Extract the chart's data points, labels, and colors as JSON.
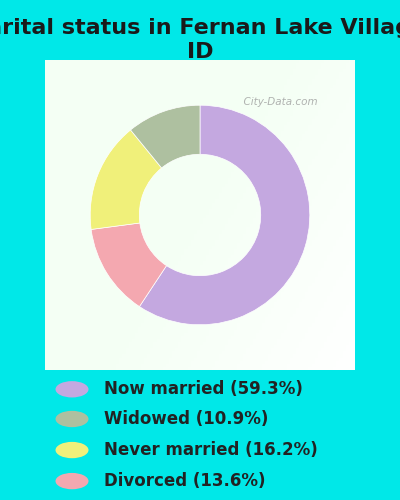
{
  "title": "Marital status in Fernan Lake Village,\nID",
  "slices": [
    59.3,
    13.6,
    16.2,
    10.9
  ],
  "colors": [
    "#c4a8e0",
    "#f4a8b0",
    "#f0f07a",
    "#aec0a0"
  ],
  "labels": [
    "Now married (59.3%)",
    "Widowed (10.9%)",
    "Never married (16.2%)",
    "Divorced (13.6%)"
  ],
  "legend_colors": [
    "#c4a8e0",
    "#aec0a0",
    "#f0f07a",
    "#f4a8b0"
  ],
  "bg_outer": "#00e8e8",
  "title_fontsize": 16,
  "legend_fontsize": 12,
  "donut_width": 0.45,
  "start_angle": 90
}
